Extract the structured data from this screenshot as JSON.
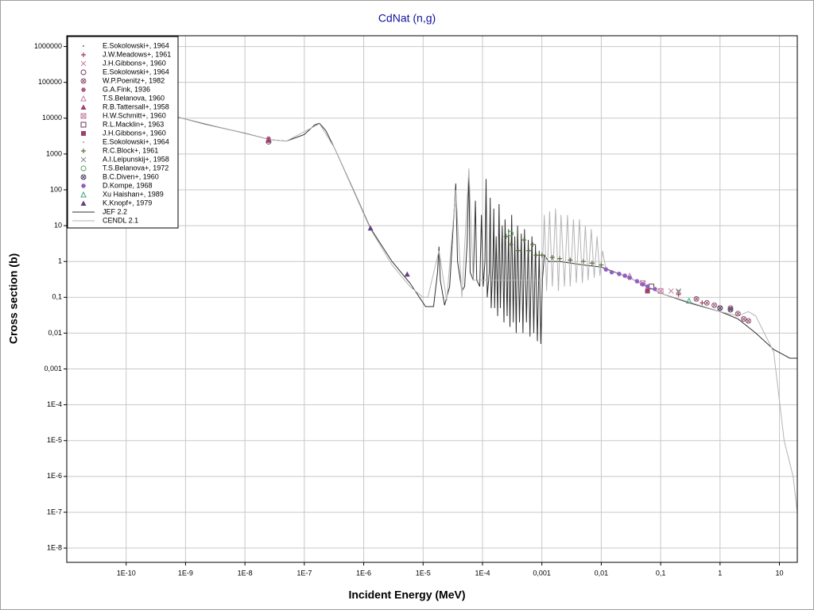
{
  "chart_data": {
    "type": "scatter",
    "title": "CdNat (n,g)",
    "x_label": "Incident Energy (MeV)",
    "y_label": "Cross section (b)",
    "xscale": "log",
    "yscale": "log",
    "grid": true,
    "legend_position": "upper left",
    "xlim": [
      1e-11,
      20
    ],
    "ylim": [
      4e-09,
      2000000
    ],
    "xticks": [
      {
        "value": 1e-10,
        "label": "1E-10"
      },
      {
        "value": 1e-09,
        "label": "1E-9"
      },
      {
        "value": 1e-08,
        "label": "1E-8"
      },
      {
        "value": 1e-07,
        "label": "1E-7"
      },
      {
        "value": 1e-06,
        "label": "1E-6"
      },
      {
        "value": 1e-05,
        "label": "1E-5"
      },
      {
        "value": 0.0001,
        "label": "1E-4"
      },
      {
        "value": 0.001,
        "label": "0,001"
      },
      {
        "value": 0.01,
        "label": "0,01"
      },
      {
        "value": 0.1,
        "label": "0,1"
      },
      1,
      10
    ],
    "yticks": [
      1000000,
      100000,
      10000,
      1000,
      100,
      10,
      1,
      {
        "value": 0.1,
        "label": "0,1"
      },
      {
        "value": 0.01,
        "label": "0,01"
      },
      {
        "value": 0.001,
        "label": "0,001"
      },
      {
        "value": 0.0001,
        "label": "1E-4"
      },
      {
        "value": 1e-05,
        "label": "1E-5"
      },
      {
        "value": 1e-06,
        "label": "1E-6"
      },
      {
        "value": 1e-07,
        "label": "1E-7"
      },
      {
        "value": 1e-08,
        "label": "1E-8"
      }
    ],
    "series": [
      {
        "name": "E.Sokolowski+, 1964",
        "color": "#a05070",
        "marker": "dot",
        "x": [
          2.5e-08
        ],
        "values": [
          2500
        ]
      },
      {
        "name": "J.W.Meadows+, 1961",
        "color": "#a04050",
        "marker": "plus",
        "x": [
          0.2,
          0.5
        ],
        "values": [
          0.12,
          0.07
        ]
      },
      {
        "name": "J.H.Gibbons+, 1960",
        "color": "#c080a0",
        "marker": "cross",
        "x": [
          0.15,
          0.2
        ],
        "values": [
          0.15,
          0.14
        ]
      },
      {
        "name": "E.Sokolowski+, 1964",
        "color": "#704060",
        "marker": "circle-open",
        "x": [
          2.5e-08
        ],
        "values": [
          2200
        ]
      },
      {
        "name": "W.P.Poenitz+, 1982",
        "color": "#905070",
        "marker": "circle-x",
        "x": [
          0.4,
          0.6,
          0.8,
          1,
          1.5,
          2,
          2.5,
          3
        ],
        "values": [
          0.09,
          0.07,
          0.06,
          0.05,
          0.05,
          0.035,
          0.025,
          0.022
        ]
      },
      {
        "name": "G.A.Fink, 1936",
        "color": "#b05a80",
        "marker": "hexagon",
        "x": [
          2.5e-08
        ],
        "values": [
          2700
        ]
      },
      {
        "name": "T.S.Belanova, 1960",
        "color": "#c080a0",
        "marker": "triangle-open",
        "x": [
          0.03
        ],
        "values": [
          0.4
        ]
      },
      {
        "name": "R.B.Tattersall+, 1958",
        "color": "#a04070",
        "marker": "triangle",
        "x": [
          2.5e-08
        ],
        "values": [
          2400
        ]
      },
      {
        "name": "H.W.Schmitt+, 1960",
        "color": "#c080a0",
        "marker": "square-x",
        "x": [
          0.05,
          0.1
        ],
        "values": [
          0.25,
          0.15
        ]
      },
      {
        "name": "R.L.Macklin+, 1963",
        "color": "#604050",
        "marker": "square-open",
        "x": [
          0.07
        ],
        "values": [
          0.2
        ]
      },
      {
        "name": "J.H.Gibbons+, 1960",
        "color": "#a04070",
        "marker": "square",
        "x": [
          0.06
        ],
        "values": [
          0.15
        ]
      },
      {
        "name": "E.Sokolowski+, 1964",
        "color": "#a0a0a0",
        "marker": "dot",
        "x": [],
        "values": []
      },
      {
        "name": "R.C.Block+, 1961",
        "color": "#5a7040",
        "marker": "plus",
        "x": [
          0.00025,
          0.0003,
          0.0004,
          0.0005,
          0.0006,
          0.0007,
          0.0008,
          0.001,
          0.0015,
          0.002,
          0.003,
          0.005,
          0.007,
          0.01
        ],
        "values": [
          5,
          3,
          2,
          4,
          2,
          3,
          1.5,
          1.5,
          1.3,
          1.2,
          1.1,
          1,
          0.9,
          0.8
        ]
      },
      {
        "name": "A.I.Leipunskij+, 1958",
        "color": "#809080",
        "marker": "cross",
        "x": [
          0.2
        ],
        "values": [
          0.15
        ]
      },
      {
        "name": "T.S.Belanova+, 1972",
        "color": "#60a060",
        "marker": "circle-open",
        "x": [
          0.0003
        ],
        "values": [
          6
        ]
      },
      {
        "name": "B.C.Diven+, 1960",
        "color": "#504060",
        "marker": "circle-x",
        "x": [
          1,
          1.5
        ],
        "values": [
          0.05,
          0.045
        ]
      },
      {
        "name": "D.Kompe, 1968",
        "color": "#9060c0",
        "marker": "hexagon",
        "x": [
          0.012,
          0.015,
          0.02,
          0.025,
          0.03,
          0.04,
          0.05,
          0.06,
          0.08
        ],
        "values": [
          0.6,
          0.5,
          0.45,
          0.4,
          0.35,
          0.28,
          0.23,
          0.2,
          0.17
        ]
      },
      {
        "name": "Xu Haishan+, 1989",
        "color": "#40a080",
        "marker": "triangle-open",
        "x": [
          0.3
        ],
        "values": [
          0.08
        ]
      },
      {
        "name": "K.Knopf+, 1979",
        "color": "#604080",
        "marker": "triangle",
        "x": [
          1.3e-06,
          5.4e-06
        ],
        "values": [
          8.5,
          0.44
        ]
      },
      {
        "name": "JEF 2.2",
        "color": "#303030",
        "marker": "line",
        "x": [
          7e-10,
          2e-09,
          1e-08,
          2.7e-08,
          5e-08,
          1e-07,
          1.5e-07,
          1.8e-07,
          2.3e-07,
          3.2e-07,
          6e-07,
          1.3e-06,
          3e-06,
          6e-06,
          1e-05,
          1.1e-05,
          1.5e-05,
          1.75e-05,
          1.85e-05,
          1.95e-05,
          2.3e-05,
          2.8e-05,
          3.3e-05,
          3.55e-05,
          3.8e-05,
          4.5e-05,
          5e-05,
          5.5e-05,
          5.9e-05,
          6.2e-05,
          7e-05,
          7.6e-05,
          8e-05,
          9e-05,
          9.6e-05,
          0.000103,
          0.00011,
          0.000115,
          0.00012,
          0.00013,
          0.000135,
          0.00014,
          0.00015,
          0.000155,
          0.00016,
          0.00017,
          0.00018,
          0.00019,
          0.0002,
          0.000215,
          0.00023,
          0.00024,
          0.00026,
          0.000275,
          0.00029,
          0.00031,
          0.00033,
          0.00035,
          0.00037,
          0.00039,
          0.00042,
          0.00045,
          0.00048,
          0.00051,
          0.00055,
          0.00059,
          0.00063,
          0.00068,
          0.00073,
          0.00078,
          0.00084,
          0.0009,
          0.00096,
          0.00102,
          0.0011,
          0.0013,
          0.002,
          0.005,
          0.01,
          0.03,
          0.1,
          0.3,
          1,
          2,
          4,
          8,
          15,
          20
        ],
        "values": [
          11000,
          7000,
          3800,
          2500,
          2300,
          3500,
          6500,
          7200,
          4500,
          1500,
          150,
          8.5,
          1,
          0.25,
          0.07,
          0.055,
          0.055,
          0.5,
          2.6,
          0.3,
          0.06,
          0.2,
          20,
          150,
          1,
          0.15,
          0.2,
          3,
          300,
          0.5,
          0.3,
          50,
          0.3,
          0.2,
          20,
          0.2,
          1,
          200,
          0.1,
          0.5,
          60,
          0.05,
          1,
          30,
          0.05,
          5,
          0.03,
          40,
          0.05,
          10,
          0.02,
          15,
          0.03,
          8,
          0.015,
          20,
          0.02,
          5,
          0.01,
          10,
          0.02,
          6,
          0.01,
          8,
          0.02,
          4,
          0.008,
          5,
          0.01,
          3,
          0.006,
          2,
          0.005,
          0.3,
          1.5,
          1,
          1,
          0.8,
          0.7,
          0.35,
          0.13,
          0.07,
          0.04,
          0.025,
          0.01,
          0.0035,
          0.002,
          0.002
        ]
      },
      {
        "name": "CENDL 2.1",
        "color": "#b4b4b4",
        "marker": "line",
        "x": [
          7e-10,
          2.7e-08,
          5e-08,
          1.8e-07,
          3.2e-07,
          1.3e-06,
          3e-06,
          6e-06,
          1e-05,
          1.2e-05,
          1.85e-05,
          2.5e-05,
          3.55e-05,
          4.5e-05,
          5.9e-05,
          7e-05,
          0.001,
          0.0011,
          0.0012,
          0.00135,
          0.0015,
          0.0017,
          0.0019,
          0.0021,
          0.0024,
          0.0027,
          0.003,
          0.0034,
          0.0038,
          0.0043,
          0.0048,
          0.0054,
          0.006,
          0.0068,
          0.0076,
          0.0085,
          0.0095,
          0.0105,
          0.012,
          0.03,
          0.1,
          1,
          2,
          3,
          4,
          8,
          12,
          17,
          20
        ],
        "values": [
          11000,
          2500,
          2300,
          7000,
          1500,
          8,
          0.8,
          0.2,
          0.1,
          0.1,
          2,
          0.08,
          100,
          0.1,
          400,
          0.3,
          0.3,
          20,
          0.15,
          25,
          0.2,
          30,
          0.15,
          20,
          0.2,
          20,
          0.2,
          15,
          0.25,
          15,
          0.25,
          10,
          0.3,
          8,
          0.35,
          5,
          0.4,
          2,
          0.6,
          0.35,
          0.13,
          0.04,
          0.03,
          0.04,
          0.03,
          0.003,
          1e-05,
          1e-06,
          1e-07
        ]
      }
    ]
  }
}
